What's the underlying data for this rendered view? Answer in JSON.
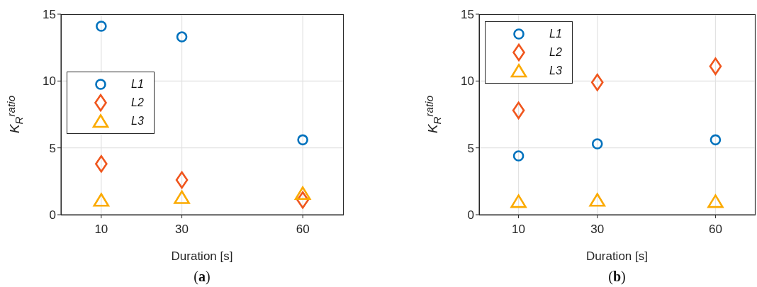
{
  "chart_data": [
    {
      "type": "scatter",
      "x": [
        10,
        30,
        60
      ],
      "xlim": [
        0,
        70
      ],
      "xticks": [
        10,
        30,
        60
      ],
      "ylim": [
        0,
        15
      ],
      "yticks": [
        0,
        5,
        10,
        15
      ],
      "xlabel": "Duration [s]",
      "ylabel": "K$_{R}$$^{ratio}$",
      "grid": true,
      "legend": "left",
      "annotations": [
        "(a)"
      ],
      "series": [
        {
          "name": "L1",
          "color": "#0072bd",
          "marker": "circle",
          "values": [
            14.1,
            13.3,
            5.6
          ]
        },
        {
          "name": "L2",
          "color": "#f0561d",
          "marker": "diamond",
          "values": [
            3.8,
            2.6,
            1.1
          ]
        },
        {
          "name": "L3",
          "color": "#fbaa00",
          "marker": "triangle",
          "values": [
            1.1,
            1.3,
            1.6
          ]
        }
      ]
    },
    {
      "type": "scatter",
      "x": [
        10,
        30,
        60
      ],
      "xlim": [
        0,
        70
      ],
      "xticks": [
        10,
        30,
        60
      ],
      "ylim": [
        0,
        15
      ],
      "yticks": [
        0,
        5,
        10,
        15
      ],
      "xlabel": "Duration [s]",
      "ylabel": "K$_{R}$$^{ratio}$",
      "grid": true,
      "legend": "top left",
      "annotations": [
        "(b)"
      ],
      "series": [
        {
          "name": "L1",
          "color": "#0072bd",
          "marker": "circle",
          "values": [
            4.4,
            5.3,
            5.6
          ]
        },
        {
          "name": "L2",
          "color": "#f0561d",
          "marker": "diamond",
          "values": [
            7.8,
            9.9,
            11.1
          ]
        },
        {
          "name": "L3",
          "color": "#fbaa00",
          "marker": "triangle",
          "values": [
            1.0,
            1.1,
            1.0
          ]
        }
      ]
    }
  ]
}
